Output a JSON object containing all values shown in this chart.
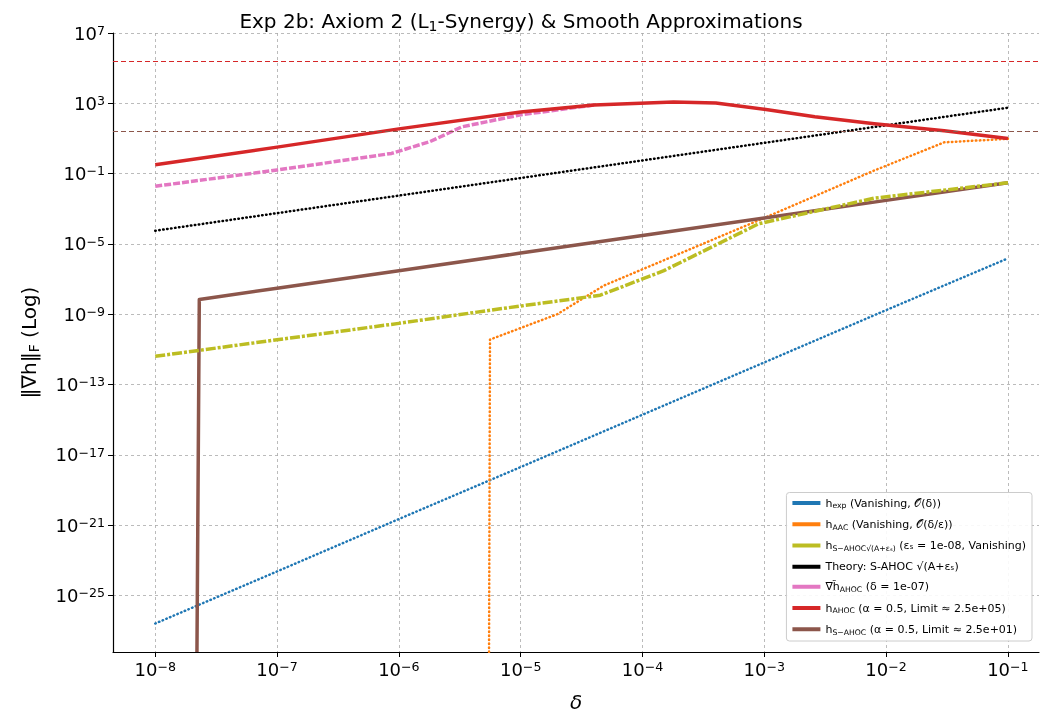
{
  "chart_data": {
    "type": "line",
    "title": "Exp 2b: Axiom 2 (L$_{1}$-Synergy) & Smooth Approximations",
    "xlabel": "δ",
    "ylabel": "‖∇h‖$_{F}$ (Log)",
    "log": "xy",
    "grid": true,
    "legend": "bottom right",
    "marker": "none",
    "xlim": [
      4.5e-09,
      0.18
    ],
    "ylim": [
      6e-29,
      10000000.0
    ],
    "xticks": [
      {
        "value": 1e-08,
        "label": "10$^{−8}$"
      },
      {
        "value": 1e-07,
        "label": "10$^{−7}$"
      },
      {
        "value": 1e-06,
        "label": "10$^{−6}$"
      },
      {
        "value": 1e-05,
        "label": "10$^{−5}$"
      },
      {
        "value": 0.0001,
        "label": "10$^{−4}$"
      },
      {
        "value": 0.001,
        "label": "10$^{−3}$"
      },
      {
        "value": 0.01,
        "label": "10$^{−2}$"
      },
      {
        "value": 0.1,
        "label": "10$^{−1}$"
      }
    ],
    "yticks": [
      {
        "value": 1e-25,
        "label": "10$^{−25}$"
      },
      {
        "value": 1e-21,
        "label": "10$^{−21}$"
      },
      {
        "value": 1e-17,
        "label": "10$^{−17}$"
      },
      {
        "value": 1e-13,
        "label": "10$^{−13}$"
      },
      {
        "value": 1e-09,
        "label": "10$^{−9}$"
      },
      {
        "value": 1e-05,
        "label": "10$^{−5}$"
      },
      {
        "value": 0.1,
        "label": "10$^{−1}$"
      },
      {
        "value": 1000,
        "label": "10$^{3}$"
      },
      {
        "value": 10000000.0,
        "label": "10$^{7}$"
      }
    ],
    "ref_lines": [
      {
        "axis": "y",
        "value": 250000,
        "label": null,
        "color": "#d62728",
        "line_style": "dashed"
      },
      {
        "axis": "y",
        "value": 25,
        "label": null,
        "color": "#8c564b",
        "line_style": "dashed"
      }
    ],
    "series": [
      {
        "name": "h$_{exp}$ (Vanishing, 𝒪(δ))",
        "color": "#1f77b4",
        "line_style": "dotted",
        "x": [
          1e-08,
          1e-07,
          1e-06,
          1e-05,
          0.0001,
          0.001,
          0.01,
          0.1
        ],
        "values": [
          2.5e-27,
          2.3e-24,
          2.2e-21,
          2e-18,
          1.9e-15,
          1.8e-12,
          1.7e-09,
          1.5e-06
        ]
      },
      {
        "name": "h$_{AAC}$ (Vanishing, 𝒪(δ/ε))",
        "color": "#ff7f0e",
        "line_style": "dotted",
        "x": [
          5.5e-06,
          5.6e-06,
          2e-05,
          4.8e-05,
          0.001,
          0.008,
          0.03,
          0.1
        ],
        "values": [
          6e-29,
          3.6e-11,
          1e-09,
          4.2e-08,
          0.0003,
          0.15,
          6,
          9.5
        ]
      },
      {
        "name": "h$_{S−AHOC√(A+εₛ)}$ (εₛ = 1e-08, Vanishing)",
        "color": "#bcbd22",
        "line_style": "dashdot",
        "x": [
          1e-08,
          1e-07,
          1e-06,
          6e-06,
          4.5e-05,
          0.00015,
          0.0009,
          0.008,
          0.1
        ],
        "values": [
          4e-12,
          3.5e-11,
          3e-10,
          1.8e-09,
          1.2e-08,
          3e-07,
          0.00014,
          0.004,
          0.03
        ]
      },
      {
        "name": "Theory: S-AHOC √(A+εₛ)",
        "color": "#000000",
        "line_style": "dotted",
        "x": [
          1e-08,
          1e-07,
          1e-06,
          1e-05,
          0.0001,
          0.001,
          0.01,
          0.1
        ],
        "values": [
          5.6e-05,
          0.00056,
          0.0056,
          0.056,
          0.56,
          5.6,
          56,
          560
        ]
      },
      {
        "name": "∇h̃$_{AHOC}$ (δ = 1e-07)",
        "color": "#e377c2",
        "line_style": "dashed",
        "x": [
          1e-08,
          1e-07,
          8.7e-07,
          1.8e-06,
          3.3e-06,
          1e-05,
          4e-05
        ],
        "values": [
          0.019,
          0.16,
          1.4,
          6.6,
          46,
          220,
          800
        ]
      },
      {
        "name": "h$_{AHOC}$ (α = 0.5, Limit ≈ 2.5e+05)",
        "color": "#d62728",
        "line_style": "solid",
        "x": [
          1e-08,
          1e-07,
          1e-06,
          1e-05,
          4e-05,
          0.00018,
          0.0004,
          0.001,
          0.0026,
          0.008,
          0.03,
          0.1
        ],
        "values": [
          0.32,
          3.2,
          35,
          320,
          800,
          1200,
          1050,
          460,
          170,
          68,
          27,
          10
        ]
      },
      {
        "name": "h$_{S−AHOC}$ (α = 0.5, Limit ≈ 2.5e+01)",
        "color": "#8c564b",
        "line_style": "solid",
        "x": [
          2.2e-08,
          2.3e-08,
          1e-07,
          1e-06,
          1e-05,
          0.0001,
          0.001,
          0.01,
          0.1
        ],
        "values": [
          6e-29,
          6.8e-09,
          3e-08,
          3e-07,
          3e-06,
          3e-05,
          0.0003,
          0.003,
          0.03
        ]
      }
    ]
  }
}
